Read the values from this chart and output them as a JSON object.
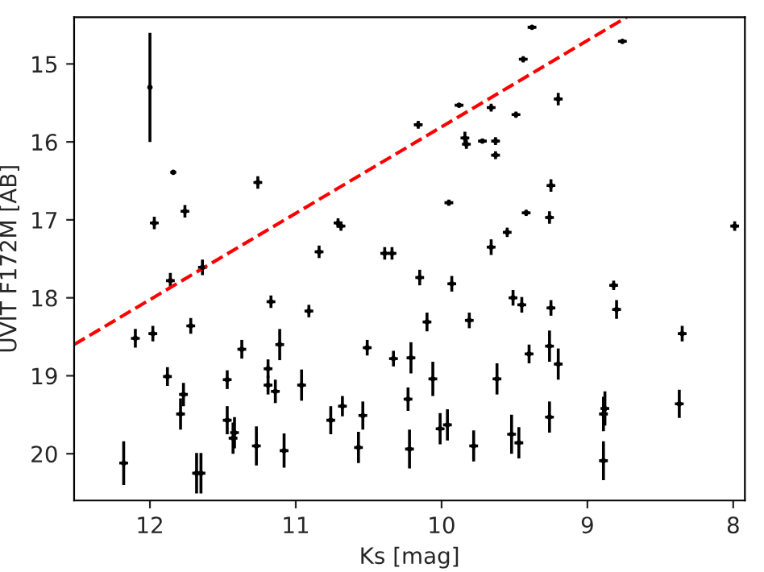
{
  "chart_data": {
    "type": "scatter",
    "xlabel": "Ks [mag]",
    "ylabel": "UVIT F172M [AB]",
    "xlim": [
      12.52,
      7.92
    ],
    "ylim": [
      20.6,
      14.4
    ],
    "xticks": [
      12,
      11,
      10,
      9,
      8
    ],
    "yticks": [
      15,
      16,
      17,
      18,
      19,
      20
    ],
    "marker": "none",
    "grid": false,
    "legend": false,
    "series": [
      {
        "color": "#000000",
        "marker": "circle",
        "x": [
          12.0,
          11.84,
          11.97,
          11.76,
          11.26,
          11.64,
          10.84,
          10.71,
          10.69,
          10.39,
          10.34,
          10.16,
          9.38,
          8.76,
          9.44,
          9.2,
          9.88,
          9.66,
          9.49,
          9.84,
          9.83,
          9.72,
          9.63,
          9.63,
          9.25,
          9.95,
          9.42,
          9.26,
          7.99,
          9.55,
          9.66,
          12.18,
          12.1,
          11.98,
          11.86,
          11.72,
          11.88,
          11.77,
          11.79,
          11.68,
          11.65,
          11.47,
          11.47,
          11.43,
          11.42,
          11.37,
          11.27,
          11.19,
          11.19,
          11.17,
          11.14,
          11.11,
          11.08,
          10.96,
          10.91,
          10.76,
          10.68,
          10.57,
          10.54,
          10.51,
          10.33,
          10.21,
          10.23,
          10.22,
          10.15,
          9.93,
          10.1,
          9.81,
          9.51,
          9.45,
          9.25,
          8.82,
          8.8,
          8.35,
          10.06,
          10.01,
          9.96,
          9.78,
          9.62,
          9.52,
          9.47,
          9.4,
          9.26,
          9.2,
          9.26,
          8.89,
          8.88,
          8.89,
          8.37
        ],
        "values": [
          15.3,
          16.39,
          17.04,
          16.89,
          16.52,
          17.61,
          17.41,
          17.04,
          17.08,
          17.43,
          17.43,
          15.78,
          14.53,
          14.71,
          14.94,
          15.45,
          15.53,
          15.56,
          15.65,
          15.95,
          16.03,
          15.99,
          15.99,
          16.17,
          16.56,
          16.78,
          16.91,
          16.97,
          17.08,
          17.16,
          17.35,
          20.12,
          18.52,
          18.46,
          17.78,
          18.36,
          19.01,
          19.24,
          19.49,
          20.25,
          20.25,
          19.05,
          19.57,
          19.8,
          19.73,
          18.66,
          19.9,
          18.91,
          19.12,
          18.05,
          19.2,
          18.6,
          19.96,
          19.12,
          18.17,
          19.57,
          19.39,
          19.92,
          19.51,
          18.64,
          18.78,
          18.77,
          19.3,
          19.94,
          17.74,
          17.82,
          18.31,
          18.29,
          18.0,
          18.09,
          18.13,
          17.84,
          18.15,
          18.46,
          19.04,
          19.68,
          19.63,
          19.9,
          19.04,
          19.75,
          19.86,
          18.72,
          18.62,
          18.85,
          19.53,
          19.49,
          19.42,
          20.09,
          19.36
        ],
        "errors": [
          0.7,
          0.02,
          0.08,
          0.08,
          0.08,
          0.1,
          0.08,
          0.06,
          0.06,
          0.08,
          0.08,
          0.05,
          0.02,
          0.02,
          0.04,
          0.08,
          0.02,
          0.05,
          0.04,
          0.08,
          0.06,
          0.03,
          0.05,
          0.05,
          0.08,
          0.04,
          0.04,
          0.08,
          0.06,
          0.06,
          0.1,
          0.28,
          0.12,
          0.1,
          0.1,
          0.1,
          0.12,
          0.15,
          0.2,
          0.26,
          0.26,
          0.12,
          0.18,
          0.2,
          0.2,
          0.12,
          0.25,
          0.12,
          0.12,
          0.08,
          0.15,
          0.2,
          0.22,
          0.2,
          0.08,
          0.18,
          0.13,
          0.2,
          0.18,
          0.1,
          0.1,
          0.2,
          0.15,
          0.25,
          0.1,
          0.1,
          0.12,
          0.1,
          0.1,
          0.1,
          0.1,
          0.06,
          0.12,
          0.1,
          0.22,
          0.2,
          0.2,
          0.2,
          0.2,
          0.25,
          0.2,
          0.12,
          0.2,
          0.2,
          0.2,
          0.22,
          0.22,
          0.25,
          0.18
        ],
        "xerrors": [
          0.0,
          0.02,
          0.03,
          0.03,
          0.03,
          0.03,
          0.03,
          0.03,
          0.03,
          0.03,
          0.03,
          0.03,
          0.03,
          0.03,
          0.03,
          0.03,
          0.03,
          0.03,
          0.03,
          0.03,
          0.03,
          0.03,
          0.03,
          0.03,
          0.03,
          0.03,
          0.03,
          0.03,
          0.03,
          0.03,
          0.03,
          0.03,
          0.03,
          0.03,
          0.03,
          0.03,
          0.03,
          0.03,
          0.03,
          0.03,
          0.03,
          0.03,
          0.03,
          0.03,
          0.03,
          0.03,
          0.03,
          0.03,
          0.03,
          0.03,
          0.03,
          0.03,
          0.03,
          0.03,
          0.03,
          0.03,
          0.03,
          0.03,
          0.03,
          0.03,
          0.03,
          0.03,
          0.03,
          0.03,
          0.03,
          0.03,
          0.03,
          0.03,
          0.03,
          0.03,
          0.03,
          0.03,
          0.03,
          0.03,
          0.03,
          0.03,
          0.03,
          0.03,
          0.03,
          0.03,
          0.03,
          0.03,
          0.03,
          0.03,
          0.03,
          0.03,
          0.03,
          0.03,
          0.03
        ]
      },
      {
        "type": "line",
        "color": "#ff0000",
        "line_style": "dashed",
        "x": [
          12.52,
          8.73
        ],
        "values": [
          18.6,
          14.4
        ]
      }
    ]
  }
}
